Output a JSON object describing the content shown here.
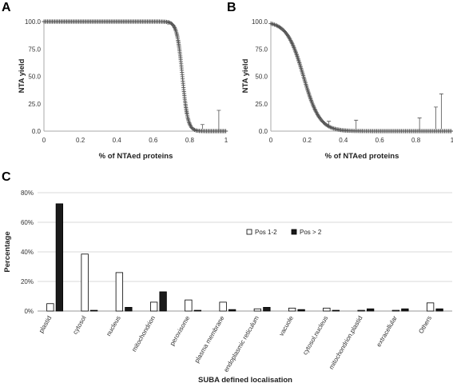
{
  "panels": {
    "a_letter": "A",
    "b_letter": "B",
    "c_letter": "C"
  },
  "chart_data": [
    {
      "type": "scatter",
      "panel": "A",
      "xlabel": "% of NTAed proteins",
      "ylabel": "NTA yield",
      "xlim": [
        0,
        1
      ],
      "ylim": [
        0,
        100
      ],
      "xticks": [
        "0",
        "0.2",
        "0.4",
        "0.6",
        "0.8",
        "1"
      ],
      "yticks": [
        "0.0",
        "25.0",
        "50.0",
        "75.0",
        "100.0"
      ],
      "grid": false,
      "marker": "plus",
      "curve": {
        "form": "sigmoid-decrease",
        "midpoint_x": 0.76,
        "slope_k": 0.015,
        "start_x": 0.0,
        "end_x": 1.0
      },
      "error_bars": [
        {
          "x": 0.68,
          "y": 97,
          "upper": 100
        },
        {
          "x": 0.87,
          "y": 2,
          "upper": 6
        },
        {
          "x": 0.96,
          "y": 1,
          "upper": 19
        }
      ]
    },
    {
      "type": "scatter",
      "panel": "B",
      "xlabel": "% of NTAed proteins",
      "ylabel": "NTA yield",
      "xlim": [
        0,
        1
      ],
      "ylim": [
        0,
        100
      ],
      "xticks": [
        "0",
        "0.2",
        "0.4",
        "0.6",
        "0.8",
        "1"
      ],
      "yticks": [
        "0.0",
        "25.0",
        "50.0",
        "75.0",
        "100.0"
      ],
      "grid": false,
      "marker": "plus",
      "curve": {
        "form": "sigmoid-decrease",
        "midpoint_x": 0.18,
        "slope_k": 0.045,
        "start_x": 0.0,
        "end_x": 1.0
      },
      "error_bars": [
        {
          "x": 0.32,
          "y": 4,
          "upper": 9
        },
        {
          "x": 0.47,
          "y": 2,
          "upper": 10
        },
        {
          "x": 0.82,
          "y": 1,
          "upper": 12
        },
        {
          "x": 0.91,
          "y": 2,
          "upper": 22
        },
        {
          "x": 0.94,
          "y": 2,
          "upper": 34
        }
      ]
    },
    {
      "type": "bar",
      "panel": "C",
      "xlabel": "SUBA defined localisation",
      "ylabel": "Percentage",
      "ylim": [
        0,
        80
      ],
      "yticks": [
        "0%",
        "20%",
        "40%",
        "60%",
        "80%"
      ],
      "grid": true,
      "legend_position": "top-right",
      "categories": [
        "plastid",
        "cytosol",
        "nucleus",
        "mitochondrion",
        "peroxisome",
        "plasma membrane",
        "endoplasmic reticulum",
        "vacuole",
        "cytosol,nucleus",
        "mitochondrion,plastid",
        "extracellular",
        "Others"
      ],
      "series": [
        {
          "name": "Pos 1-2",
          "fill": "#ffffff",
          "stroke": "#000000",
          "values": [
            5,
            38.5,
            26,
            6,
            7.5,
            6,
            1.5,
            2,
            2,
            0.5,
            0.5,
            5.5
          ]
        },
        {
          "name": "Pos > 2",
          "fill": "#1a1a1a",
          "stroke": "#000000",
          "values": [
            72.5,
            0.5,
            2.5,
            13,
            0.5,
            1,
            2.5,
            1,
            0.5,
            1.5,
            1.5,
            1.5
          ]
        }
      ]
    }
  ]
}
